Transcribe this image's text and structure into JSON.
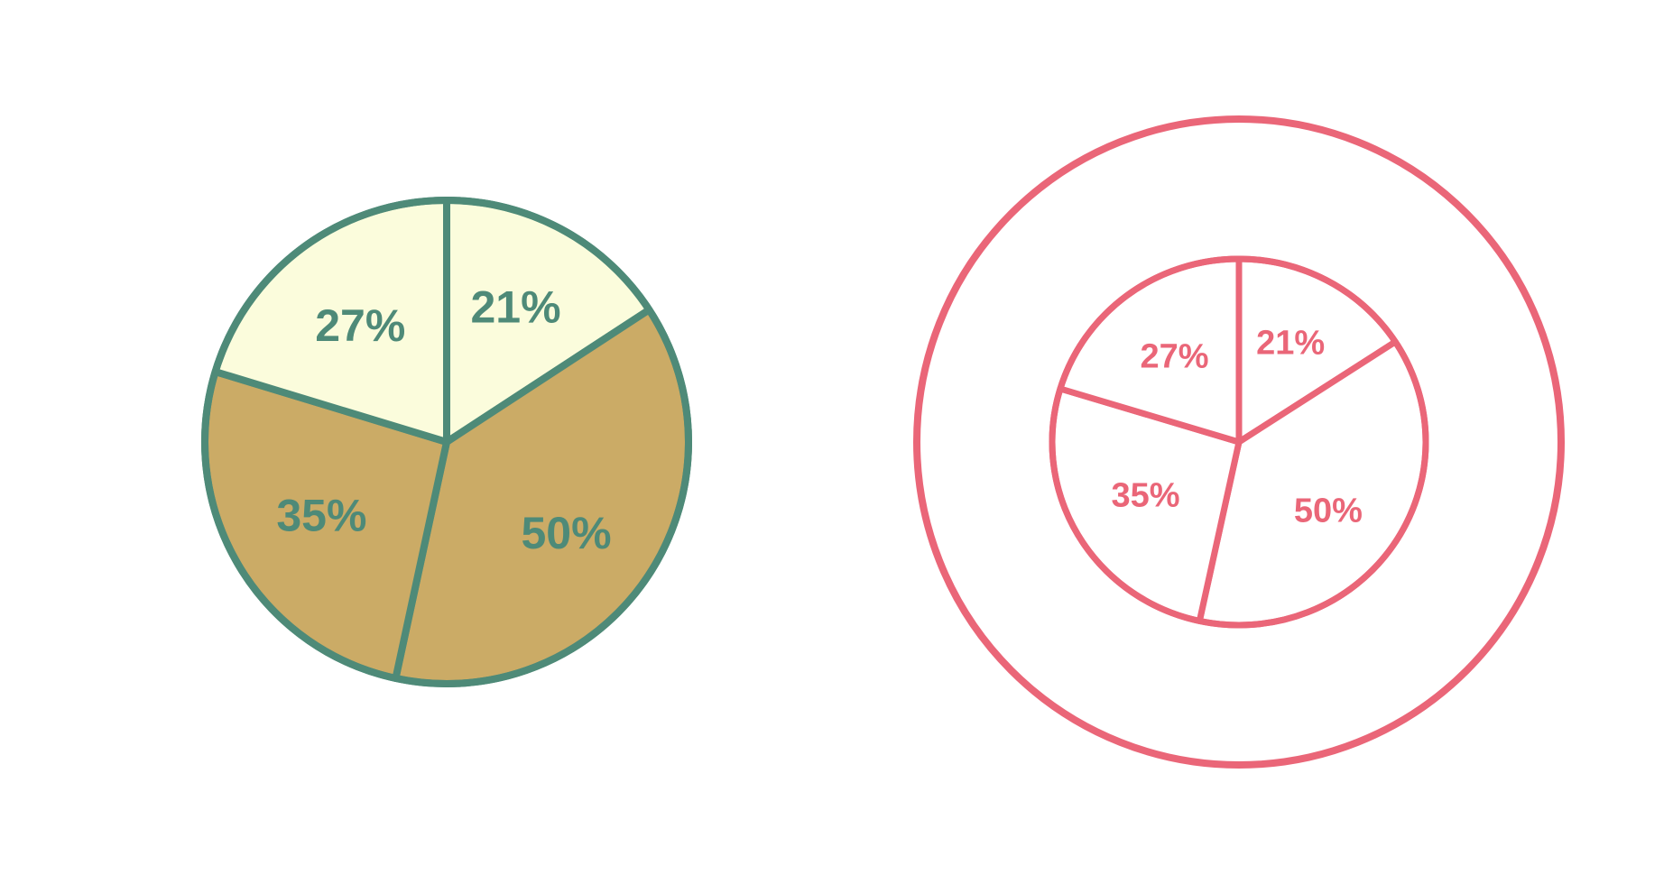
{
  "chart_data": [
    {
      "type": "pie",
      "style": "filled",
      "labels": [
        "21%",
        "50%",
        "35%",
        "27%"
      ],
      "values": [
        21,
        50,
        35,
        27
      ],
      "colors": {
        "stroke": "#4e8a78",
        "text": "#4e8a78",
        "light_fill": "#fbfcdc",
        "dark_fill": "#cbab66",
        "slice_fills": [
          "#fbfcdc",
          "#cbab66",
          "#cbab66",
          "#fbfcdc"
        ]
      }
    },
    {
      "type": "pie",
      "style": "outline",
      "labels": [
        "21%",
        "50%",
        "35%",
        "27%"
      ],
      "values": [
        21,
        50,
        35,
        27
      ],
      "colors": {
        "stroke": "#ea6678",
        "text": "#ea6678",
        "fill": "#ffffff"
      },
      "outer_ring": true
    }
  ]
}
